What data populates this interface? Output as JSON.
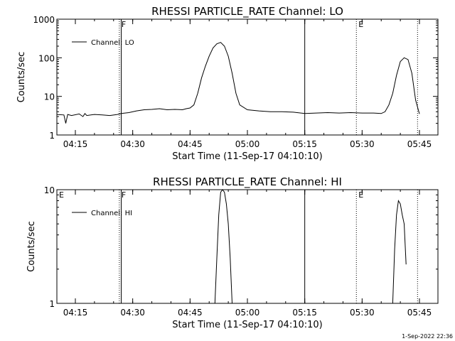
{
  "footer": {
    "timestamp": "1-Sep-2022 22:36"
  },
  "chart_data": [
    {
      "type": "line",
      "title": "RHESSI PARTICLE_RATE Channel: LO",
      "xlabel": "Start Time (11-Sep-17 04:10:10)",
      "ylabel": "Counts/sec",
      "y_scale": "log",
      "ylim": [
        1,
        1000
      ],
      "xlim": [
        "04:10:10",
        "05:49:50"
      ],
      "x_ticks": [
        "04:15",
        "04:30",
        "04:45",
        "05:00",
        "05:15",
        "05:30",
        "05:45"
      ],
      "y_ticks": [
        "1",
        "10",
        "100",
        "1000"
      ],
      "legend": {
        "label": "Channel: LO",
        "placement": "top-left"
      },
      "markers": [
        {
          "time": "04:26:30",
          "label": "F",
          "style": "dotted"
        },
        {
          "time": "04:27:00",
          "label": "",
          "style": "solid"
        },
        {
          "time": "05:15:00",
          "label": "",
          "style": "solid"
        },
        {
          "time": "05:28:30",
          "label": "E",
          "style": "dotted"
        },
        {
          "time": "05:44:30",
          "label": "",
          "style": "dotted"
        }
      ],
      "series": [
        {
          "values_note": "",
          "x": [
            "04:10:10",
            "04:12:00",
            "04:12:30",
            "04:13:00",
            "04:14:00",
            "04:16:00",
            "04:17:00",
            "04:17:30",
            "04:18:00",
            "04:20:00",
            "04:22:00",
            "04:24:00",
            "04:26:00",
            "04:27:00",
            "04:29:00",
            "04:31:00",
            "04:33:00",
            "04:35:00",
            "04:37:00",
            "04:39:00",
            "04:41:00",
            "04:43:00",
            "04:44:00",
            "04:45:00",
            "04:46:00",
            "04:47:00",
            "04:48:00",
            "04:49:00",
            "04:50:00",
            "04:51:00",
            "04:52:00",
            "04:53:00",
            "04:54:00",
            "04:55:00",
            "04:56:00",
            "04:57:00",
            "04:58:00",
            "05:00:00",
            "05:03:00",
            "05:06:00",
            "05:09:00",
            "05:12:00",
            "05:15:00",
            "05:18:00",
            "05:21:00",
            "05:24:00",
            "05:27:00",
            "05:30:00",
            "05:33:00",
            "05:35:00",
            "05:36:00",
            "05:37:00",
            "05:38:00",
            "05:39:00",
            "05:40:00",
            "05:41:00",
            "05:42:00",
            "05:43:00",
            "05:44:00",
            "05:45:00"
          ],
          "values": [
            3.4,
            3.3,
            2.0,
            3.4,
            3.2,
            3.5,
            3.0,
            3.6,
            3.2,
            3.4,
            3.3,
            3.2,
            3.4,
            3.6,
            3.8,
            4.2,
            4.5,
            4.6,
            4.8,
            4.5,
            4.6,
            4.5,
            4.8,
            5.0,
            6.0,
            12,
            30,
            60,
            110,
            180,
            230,
            250,
            200,
            110,
            40,
            12,
            6,
            4.5,
            4.2,
            4.0,
            4.0,
            3.9,
            3.6,
            3.7,
            3.8,
            3.7,
            3.8,
            3.7,
            3.7,
            3.6,
            4.0,
            6,
            12,
            35,
            80,
            100,
            90,
            40,
            8,
            3.5
          ]
        }
      ]
    },
    {
      "type": "line",
      "title": "RHESSI PARTICLE_RATE Channel: HI",
      "xlabel": "Start Time (11-Sep-17 04:10:10)",
      "ylabel": "Counts/sec",
      "y_scale": "log",
      "ylim": [
        1,
        10
      ],
      "xlim": [
        "04:10:10",
        "05:49:50"
      ],
      "x_ticks": [
        "04:15",
        "04:30",
        "04:45",
        "05:00",
        "05:15",
        "05:30",
        "05:45"
      ],
      "y_ticks": [
        "1",
        "10"
      ],
      "legend": {
        "label": "Channel: HI",
        "placement": "top-left"
      },
      "markers": [
        {
          "time": "04:10:10",
          "label": "E",
          "style": "none"
        },
        {
          "time": "04:26:30",
          "label": "F",
          "style": "dotted"
        },
        {
          "time": "04:27:00",
          "label": "",
          "style": "solid"
        },
        {
          "time": "05:15:00",
          "label": "",
          "style": "solid"
        },
        {
          "time": "05:28:30",
          "label": "E",
          "style": "dotted"
        },
        {
          "time": "05:44:30",
          "label": "",
          "style": "dotted"
        }
      ],
      "series": [
        {
          "x": [
            "04:51:30",
            "04:52:00",
            "04:52:30",
            "04:53:00",
            "04:53:30",
            "04:54:00",
            "04:54:30",
            "04:55:00",
            "04:55:30",
            "04:56:00",
            "05:38:00",
            "05:38:30",
            "05:39:00",
            "05:39:30",
            "05:40:00",
            "05:40:30",
            "05:41:00",
            "05:41:30"
          ],
          "values": [
            1.0,
            2.5,
            6.0,
            9.5,
            10,
            9.5,
            7.5,
            5.0,
            2.5,
            1.0,
            1.0,
            3.0,
            6.0,
            8.0,
            7.5,
            6.0,
            5.0,
            2.2
          ]
        }
      ]
    }
  ]
}
